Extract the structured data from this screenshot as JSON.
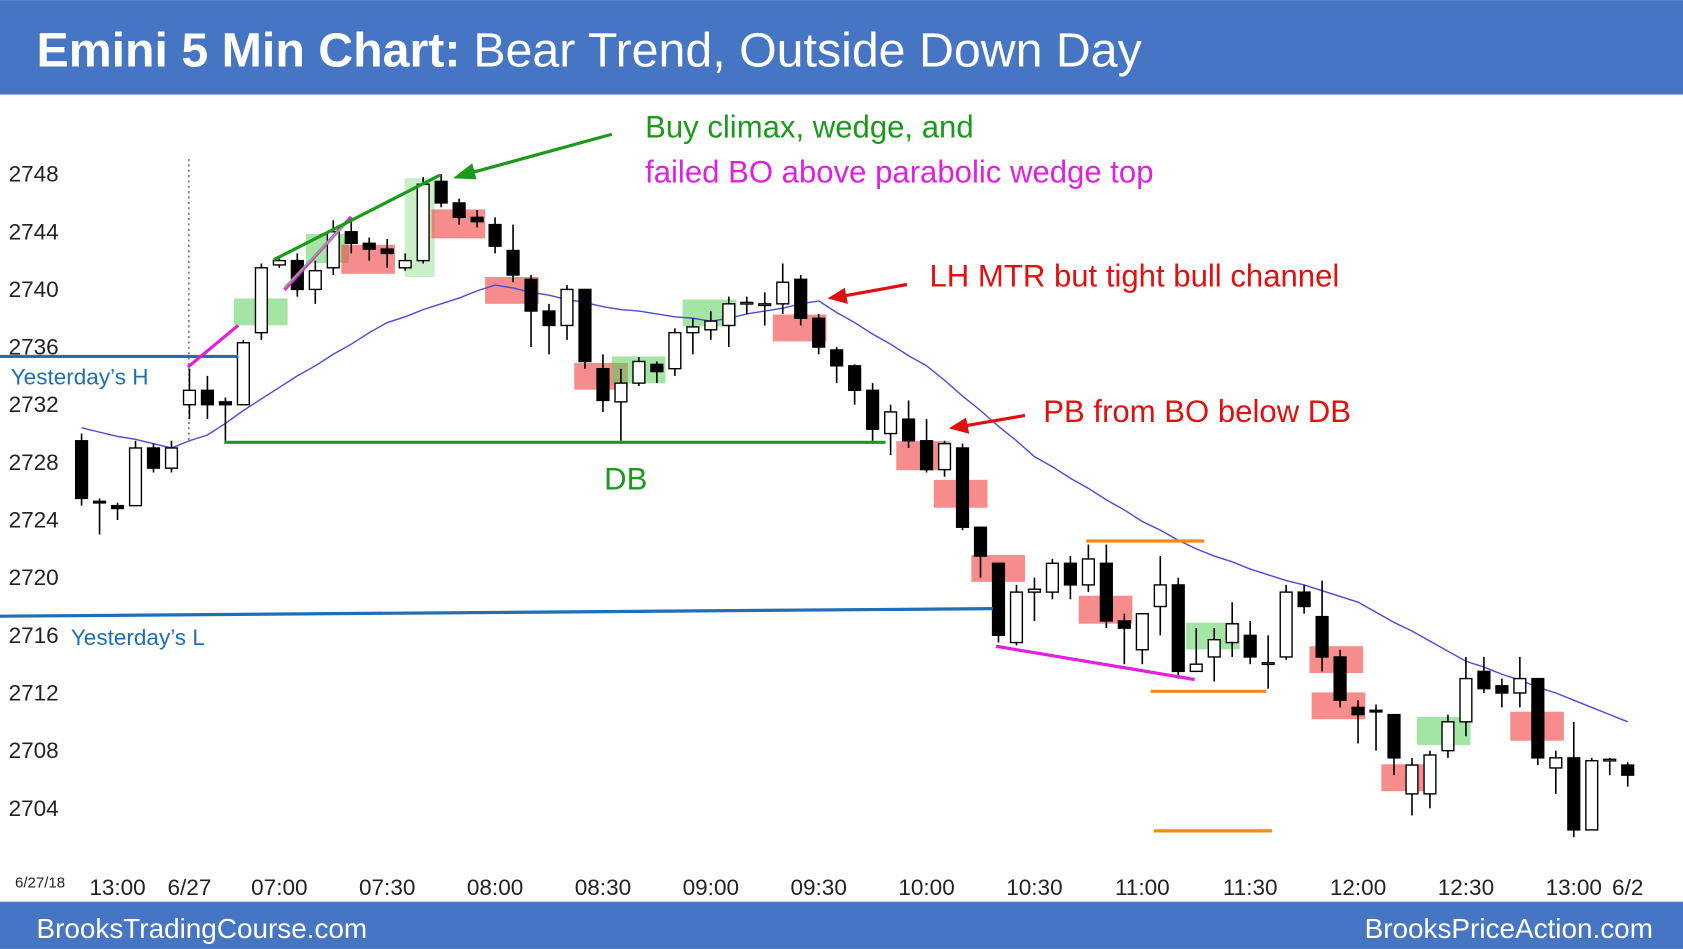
{
  "chart_data": {
    "type": "candlestick",
    "title": "Emini 5 Min Chart:",
    "subtitle": "Bear Trend, Outside Down Day",
    "date_label": "6/27/18",
    "categories": [
      null,
      null,
      "13:00",
      null,
      null,
      null,
      "6/27",
      null,
      null,
      null,
      null,
      "07:00",
      null,
      null,
      null,
      null,
      null,
      "07:30",
      null,
      null,
      null,
      null,
      null,
      "08:00",
      null,
      null,
      null,
      null,
      null,
      "08:30",
      null,
      null,
      null,
      null,
      null,
      "09:00",
      null,
      null,
      null,
      null,
      null,
      "09:30",
      null,
      null,
      null,
      null,
      null,
      "10:00",
      null,
      null,
      null,
      null,
      null,
      "10:30",
      null,
      null,
      null,
      null,
      null,
      "11:00",
      null,
      null,
      null,
      null,
      null,
      "11:30",
      null,
      null,
      null,
      null,
      null,
      "12:00",
      null,
      null,
      null,
      null,
      null,
      "12:30",
      null,
      null,
      null,
      null,
      null,
      "13:00",
      null,
      null,
      "6/2"
    ],
    "open": [
      2729.5,
      2725.3,
      2725,
      2725,
      2729,
      2727.6,
      2732,
      2733,
      2732.2,
      2732,
      2737,
      2741.7,
      2742,
      2740,
      2741.5,
      2744,
      2743.2,
      2742.8,
      2741.5,
      2742,
      2747.5,
      2746,
      2745,
      2744.5,
      2742.7,
      2740.7,
      2738.5,
      2737.5,
      2740,
      2734.5,
      2732.2,
      2733.5,
      2734.8,
      2734.5,
      2737,
      2737.2,
      2737.5,
      2739,
      2739,
      2739,
      2740.7,
      2738,
      2735.8,
      2734.7,
      2733,
      2730,
      2731,
      2729.5,
      2727.5,
      2729,
      2723.5,
      2721,
      2715.5,
      2719,
      2719,
      2721,
      2719.5,
      2721,
      2717,
      2715,
      2718,
      2719.5,
      2713.5,
      2714.5,
      2715.5,
      2716,
      2714,
      2714.5,
      2719,
      2717.3,
      2714.5,
      2711,
      2710.8,
      2710.5,
      2705,
      2705,
      2708,
      2710,
      2713.5,
      2712.5,
      2712,
      2713,
      2706.8,
      2707.5,
      2702.5,
      2707.3,
      2707
    ],
    "high": [
      2730,
      2725.5,
      2725.2,
      2729.5,
      2729.3,
      2729.5,
      2734.5,
      2734,
      2732.5,
      2736.5,
      2741.8,
      2742.2,
      2742.5,
      2742,
      2744.8,
      2745,
      2743.6,
      2743.5,
      2742.5,
      2747.8,
      2748,
      2746.3,
      2745.5,
      2745,
      2744.5,
      2741,
      2739,
      2740.3,
      2740,
      2735.5,
      2734.5,
      2735.3,
      2735,
      2737.3,
      2738,
      2738.5,
      2739.5,
      2739.5,
      2739.8,
      2741.8,
      2741,
      2738.3,
      2736,
      2734.8,
      2733.5,
      2732,
      2732.3,
      2731,
      2729.5,
      2729.3,
      2723.5,
      2721,
      2719.5,
      2720,
      2721.3,
      2721.5,
      2722.3,
      2722.3,
      2717.5,
      2717.5,
      2721.5,
      2720,
      2716.5,
      2716.5,
      2718.3,
      2717,
      2716,
      2719.5,
      2719.5,
      2719.8,
      2715,
      2711.5,
      2711.2,
      2710.5,
      2707.5,
      2708,
      2710.5,
      2714.5,
      2714.5,
      2713,
      2714.5,
      2713,
      2708,
      2710,
      2707.5,
      2707.5,
      2707.2
    ],
    "low": [
      2725,
      2723,
      2724,
      2725,
      2727.3,
      2727.3,
      2731,
      2731,
      2729.5,
      2732,
      2736.5,
      2741.5,
      2739.5,
      2739,
      2741,
      2742.5,
      2742,
      2741.5,
      2741.3,
      2741.8,
      2745.7,
      2744.5,
      2744.3,
      2742.5,
      2740.5,
      2736,
      2735.5,
      2736.5,
      2734.5,
      2731.5,
      2729.5,
      2733.3,
      2733.5,
      2734,
      2735.5,
      2736.5,
      2736,
      2738.3,
      2737.5,
      2738.3,
      2737.5,
      2735.5,
      2733.5,
      2732,
      2729.5,
      2728.5,
      2729,
      2727.3,
      2727,
      2723.3,
      2720,
      2715.5,
      2715.3,
      2717,
      2718.5,
      2718.5,
      2719,
      2716.5,
      2714,
      2714,
      2716,
      2713,
      2713.5,
      2712.8,
      2714.5,
      2714,
      2712.3,
      2714.3,
      2717.5,
      2713.5,
      2711,
      2708.5,
      2708,
      2706.3,
      2703.5,
      2704,
      2707.5,
      2709,
      2712,
      2711,
      2711,
      2707,
      2705,
      2702,
      2702.5,
      2706.3,
      2705.5
    ],
    "close": [
      2725.5,
      2725.2,
      2724.8,
      2729,
      2727.6,
      2729,
      2733,
      2732,
      2732,
      2736.3,
      2741.5,
      2742,
      2740,
      2741.3,
      2744,
      2743.2,
      2742.8,
      2742.5,
      2742,
      2747.3,
      2746,
      2745,
      2744.7,
      2743,
      2741,
      2738.5,
      2737.5,
      2740,
      2735,
      2732.3,
      2733.5,
      2735,
      2734.3,
      2737,
      2737.4,
      2737.8,
      2739,
      2739.1,
      2739,
      2740.5,
      2738,
      2736,
      2734.7,
      2733,
      2730.3,
      2731.5,
      2729.5,
      2727.5,
      2729.3,
      2723.5,
      2721.5,
      2716,
      2719,
      2719.2,
      2721,
      2719.5,
      2721.3,
      2717,
      2716.5,
      2717.5,
      2719.5,
      2713.5,
      2714,
      2715.7,
      2716.8,
      2714.5,
      2714.1,
      2719,
      2718,
      2714.5,
      2711.5,
      2710.5,
      2710.7,
      2707.5,
      2707,
      2707.7,
      2710,
      2713,
      2712.3,
      2712,
      2713,
      2707.5,
      2707.5,
      2702.5,
      2707.3,
      2707.4,
      2706.3
    ],
    "moving_average": {
      "color": "#4a4ad8",
      "values": [
        2730.4,
        2730.1,
        2729.8,
        2729.6,
        2729.3,
        2729.0,
        2729.5,
        2729.9,
        2730.7,
        2731.6,
        2732.4,
        2733.2,
        2734.0,
        2734.7,
        2735.5,
        2736.2,
        2737.0,
        2737.7,
        2738.1,
        2738.6,
        2739.0,
        2739.4,
        2739.9,
        2740.3,
        2740.1,
        2739.8,
        2739.6,
        2739.3,
        2739.1,
        2738.8,
        2738.6,
        2738.5,
        2738.3,
        2738.1,
        2738.0,
        2737.8,
        2738.0,
        2738.3,
        2738.5,
        2738.7,
        2739.0,
        2739.2,
        2738.4,
        2737.7,
        2736.9,
        2736.2,
        2735.4,
        2734.7,
        2733.7,
        2732.6,
        2731.6,
        2730.5,
        2729.5,
        2728.4,
        2727.7,
        2726.9,
        2726.2,
        2725.4,
        2724.7,
        2723.9,
        2723.3,
        2722.6,
        2722.0,
        2721.5,
        2721.1,
        2720.6,
        2720.2,
        2719.8,
        2719.5,
        2719.1,
        2718.7,
        2718.3,
        2717.6,
        2716.9,
        2716.3,
        2715.6,
        2714.9,
        2714.2,
        2713.8,
        2713.3,
        2712.9,
        2712.4,
        2712.0,
        2711.5,
        2711.0,
        2710.5,
        2710.0
      ]
    },
    "ylim": [
      2700.5,
      2753
    ],
    "yticks": [
      2704,
      2708,
      2712,
      2716,
      2720,
      2724,
      2728,
      2732,
      2736,
      2740,
      2744,
      2748
    ],
    "annotations": [
      "Buy climax, wedge, and",
      "failed BO above parabolic wedge top",
      "LH MTR but tight bull channel",
      "PB from BO below DB",
      "DB",
      "Yesterday’s H",
      "Yesterday’s L"
    ]
  },
  "footer": {
    "left": "BrooksTradingCourse.com",
    "right": "BrooksPriceAction.com"
  }
}
